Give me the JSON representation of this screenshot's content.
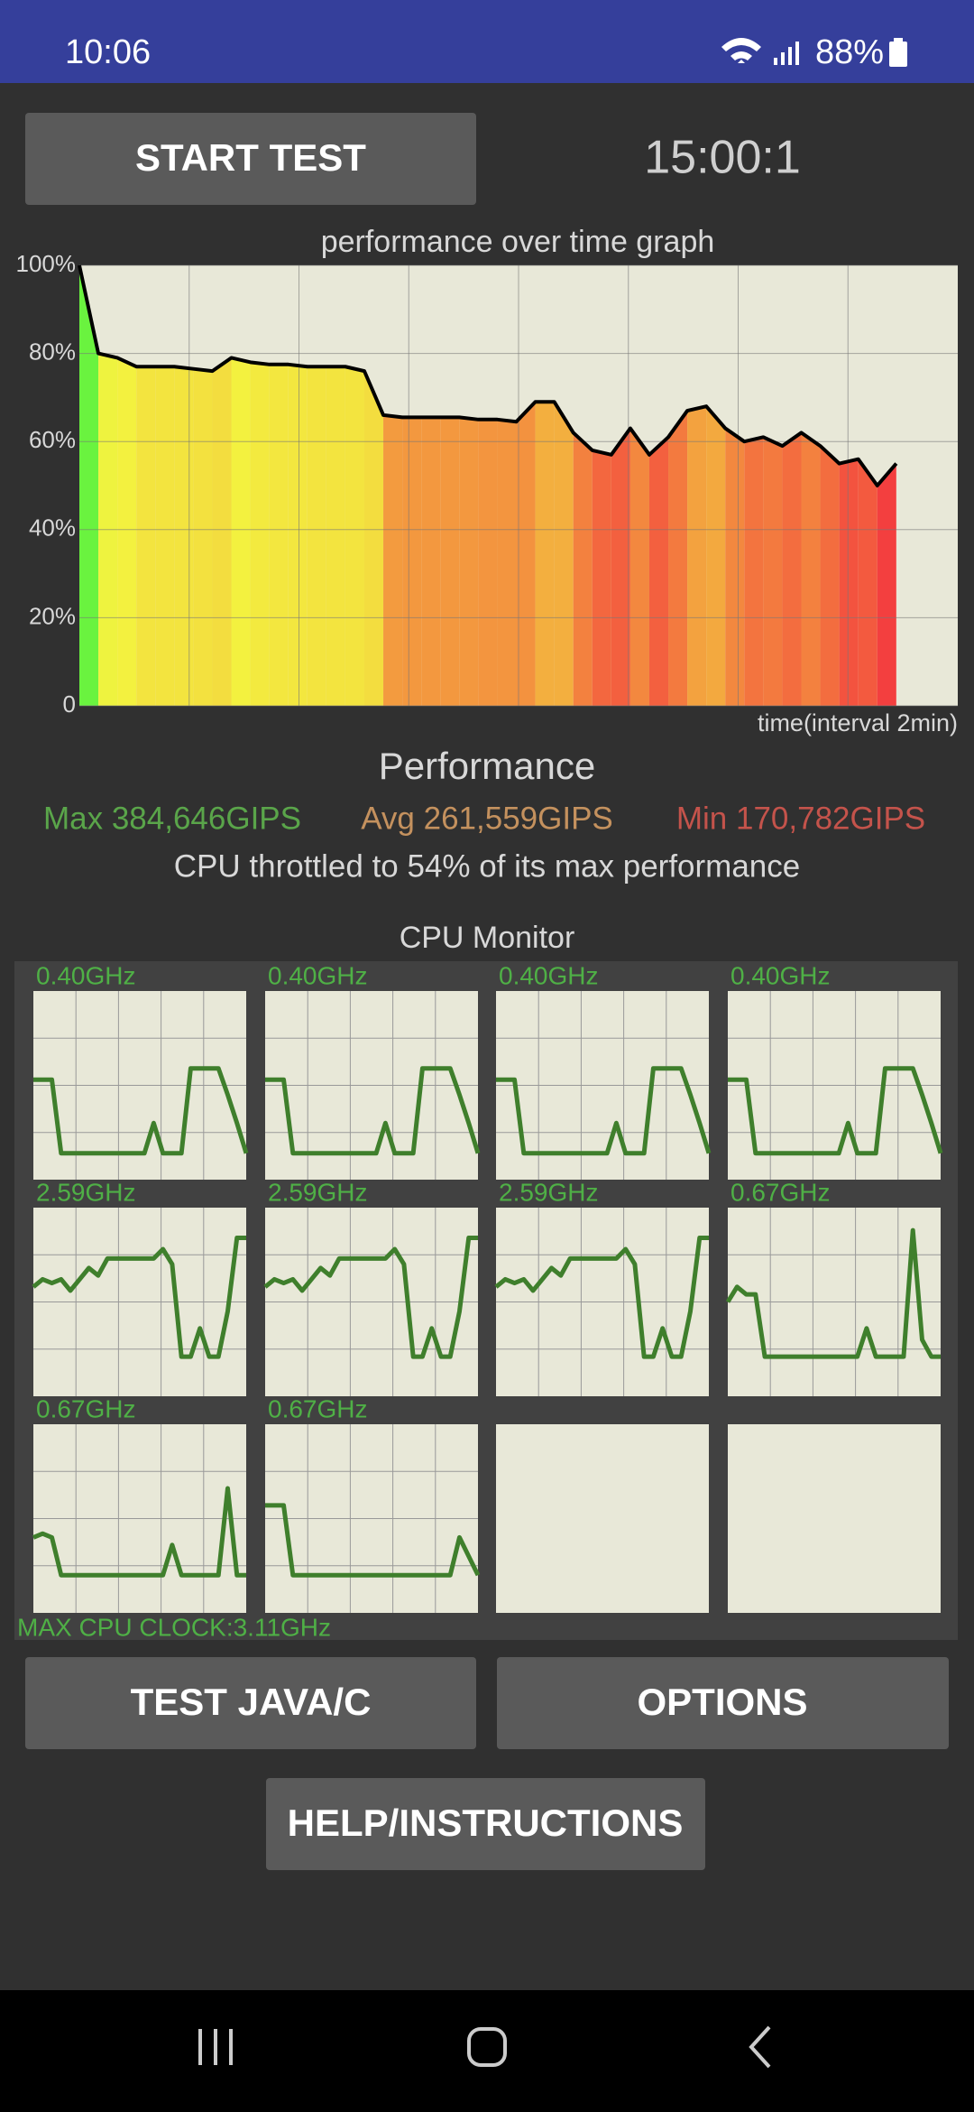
{
  "status_bar": {
    "time": "10:06",
    "battery": "88%"
  },
  "start_button": "START TEST",
  "timer": "15:00:1",
  "chart_data": {
    "type": "line",
    "title": "performance over time graph",
    "x_label": "time(interval 2min)",
    "color": "#000000",
    "grid": true,
    "ylim": [
      0,
      100
    ],
    "yticks": [
      0,
      {
        "value": 20,
        "label": "20%"
      },
      {
        "value": 40,
        "label": "40%"
      },
      {
        "value": 60,
        "label": "60%"
      },
      {
        "value": 80,
        "label": "80%"
      },
      {
        "value": 100,
        "label": "100%"
      }
    ],
    "values": [
      100,
      80,
      79,
      77,
      77,
      77,
      76.5,
      76,
      79,
      78,
      77.5,
      77.5,
      77,
      77,
      77,
      76,
      66,
      65.5,
      65.5,
      65.5,
      65.5,
      65,
      65,
      64.5,
      69,
      69,
      62,
      58,
      57,
      63,
      57,
      61,
      67,
      68,
      63,
      60,
      61,
      59,
      62,
      59,
      55,
      56,
      50,
      55
    ]
  },
  "performance": {
    "title": "Performance",
    "max": "Max 384,646GIPS",
    "avg": "Avg 261,559GIPS",
    "min": "Min 170,782GIPS",
    "throttle": "CPU throttled to 54% of its max performance"
  },
  "cpu_monitor": {
    "title": "CPU Monitor",
    "max_clock": "MAX CPU CLOCK:3.11GHz",
    "cores": [
      {
        "label": "0.40GHz",
        "values": [
          0.53,
          0.53,
          0.53,
          0.14,
          0.14,
          0.14,
          0.14,
          0.14,
          0.14,
          0.14,
          0.14,
          0.14,
          0.14,
          0.3,
          0.14,
          0.14,
          0.14,
          0.59,
          0.59,
          0.59,
          0.59,
          0.45,
          0.3,
          0.14
        ]
      },
      {
        "label": "0.40GHz",
        "values": [
          0.53,
          0.53,
          0.53,
          0.14,
          0.14,
          0.14,
          0.14,
          0.14,
          0.14,
          0.14,
          0.14,
          0.14,
          0.14,
          0.3,
          0.14,
          0.14,
          0.14,
          0.59,
          0.59,
          0.59,
          0.59,
          0.45,
          0.3,
          0.14
        ]
      },
      {
        "label": "0.40GHz",
        "values": [
          0.53,
          0.53,
          0.53,
          0.14,
          0.14,
          0.14,
          0.14,
          0.14,
          0.14,
          0.14,
          0.14,
          0.14,
          0.14,
          0.3,
          0.14,
          0.14,
          0.14,
          0.59,
          0.59,
          0.59,
          0.59,
          0.45,
          0.3,
          0.14
        ]
      },
      {
        "label": "0.40GHz",
        "values": [
          0.53,
          0.53,
          0.53,
          0.14,
          0.14,
          0.14,
          0.14,
          0.14,
          0.14,
          0.14,
          0.14,
          0.14,
          0.14,
          0.3,
          0.14,
          0.14,
          0.14,
          0.59,
          0.59,
          0.59,
          0.59,
          0.45,
          0.3,
          0.14
        ]
      },
      {
        "label": "2.59GHz",
        "values": [
          0.58,
          0.62,
          0.6,
          0.62,
          0.56,
          0.62,
          0.68,
          0.64,
          0.73,
          0.73,
          0.73,
          0.73,
          0.73,
          0.73,
          0.78,
          0.7,
          0.21,
          0.21,
          0.36,
          0.21,
          0.21,
          0.45,
          0.84,
          0.84
        ]
      },
      {
        "label": "2.59GHz",
        "values": [
          0.58,
          0.62,
          0.6,
          0.62,
          0.56,
          0.62,
          0.68,
          0.64,
          0.73,
          0.73,
          0.73,
          0.73,
          0.73,
          0.73,
          0.78,
          0.7,
          0.21,
          0.21,
          0.36,
          0.21,
          0.21,
          0.45,
          0.84,
          0.84
        ]
      },
      {
        "label": "2.59GHz",
        "values": [
          0.58,
          0.62,
          0.6,
          0.62,
          0.56,
          0.62,
          0.68,
          0.64,
          0.73,
          0.73,
          0.73,
          0.73,
          0.73,
          0.73,
          0.78,
          0.7,
          0.21,
          0.21,
          0.36,
          0.21,
          0.21,
          0.45,
          0.84,
          0.84
        ]
      },
      {
        "label": "0.67GHz",
        "values": [
          0.5,
          0.58,
          0.54,
          0.54,
          0.21,
          0.21,
          0.21,
          0.21,
          0.21,
          0.21,
          0.21,
          0.21,
          0.21,
          0.21,
          0.21,
          0.36,
          0.21,
          0.21,
          0.21,
          0.21,
          0.88,
          0.3,
          0.21,
          0.21
        ]
      },
      {
        "label": "0.67GHz",
        "values": [
          0.4,
          0.42,
          0.4,
          0.2,
          0.2,
          0.2,
          0.2,
          0.2,
          0.2,
          0.2,
          0.2,
          0.2,
          0.2,
          0.2,
          0.2,
          0.36,
          0.2,
          0.2,
          0.2,
          0.2,
          0.2,
          0.66,
          0.2,
          0.2
        ]
      },
      {
        "label": "0.67GHz",
        "values": [
          0.57,
          0.57,
          0.57,
          0.2,
          0.2,
          0.2,
          0.2,
          0.2,
          0.2,
          0.2,
          0.2,
          0.2,
          0.2,
          0.2,
          0.2,
          0.2,
          0.2,
          0.2,
          0.2,
          0.2,
          0.2,
          0.4,
          0.3,
          0.2
        ]
      }
    ]
  },
  "buttons": {
    "test": "TEST JAVA/C",
    "options": "OPTIONS",
    "help": "HELP/INSTRUCTIONS"
  }
}
